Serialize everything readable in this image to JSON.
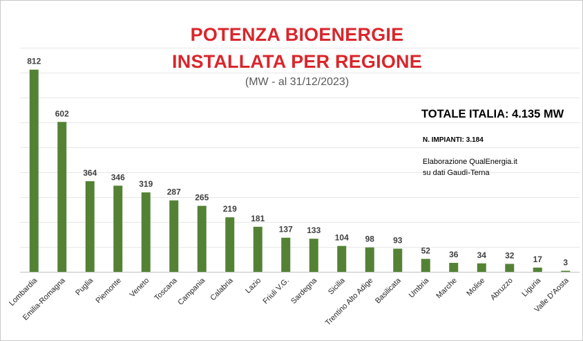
{
  "header": {
    "title_line1": "POTENZA BIOENERGIE",
    "title_line2": "INSTALLATA PER REGIONE",
    "subtitle": "(MW - al 31/12/2023)"
  },
  "info": {
    "total": "TOTALE ITALIA:  4.135 MW",
    "plants": "N. IMPIANTI:  3.184",
    "credit_line1": "Elaborazione QualEnergia.it",
    "credit_line2": "su dati Gaudì-Terna"
  },
  "colors": {
    "bar": "#548235",
    "title": "#d9262c"
  },
  "chart_data": {
    "type": "bar",
    "title": "POTENZA BIOENERGIE INSTALLATA PER REGIONE",
    "subtitle": "(MW - al 31/12/2023)",
    "xlabel": "",
    "ylabel": "",
    "ylim": [
      0,
      900
    ],
    "grid": true,
    "categories": [
      "Lombardia",
      "Emilia-Romagna",
      "Puglia",
      "Piemonte",
      "Veneto",
      "Toscana",
      "Campania",
      "Calabria",
      "Lazio",
      "Friuli V.G.",
      "Sardegna",
      "Sicilia",
      "Trentino Alto Adige",
      "Basilicata",
      "Umbria",
      "Marche",
      "Molise",
      "Abruzzo",
      "Liguria",
      "Valle D'Aosta"
    ],
    "values": [
      812,
      602,
      364,
      346,
      319,
      287,
      265,
      219,
      181,
      137,
      133,
      104,
      98,
      93,
      52,
      36,
      34,
      32,
      17,
      3
    ]
  }
}
